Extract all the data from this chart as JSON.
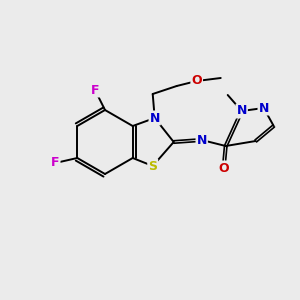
{
  "background_color": "#ebebeb",
  "atom_colors": {
    "C": "#000000",
    "N": "#0000cc",
    "O": "#cc0000",
    "S": "#bbbb00",
    "F": "#cc00cc",
    "H": "#000000"
  },
  "bond_color": "#000000",
  "figsize": [
    3.0,
    3.0
  ],
  "dpi": 100
}
